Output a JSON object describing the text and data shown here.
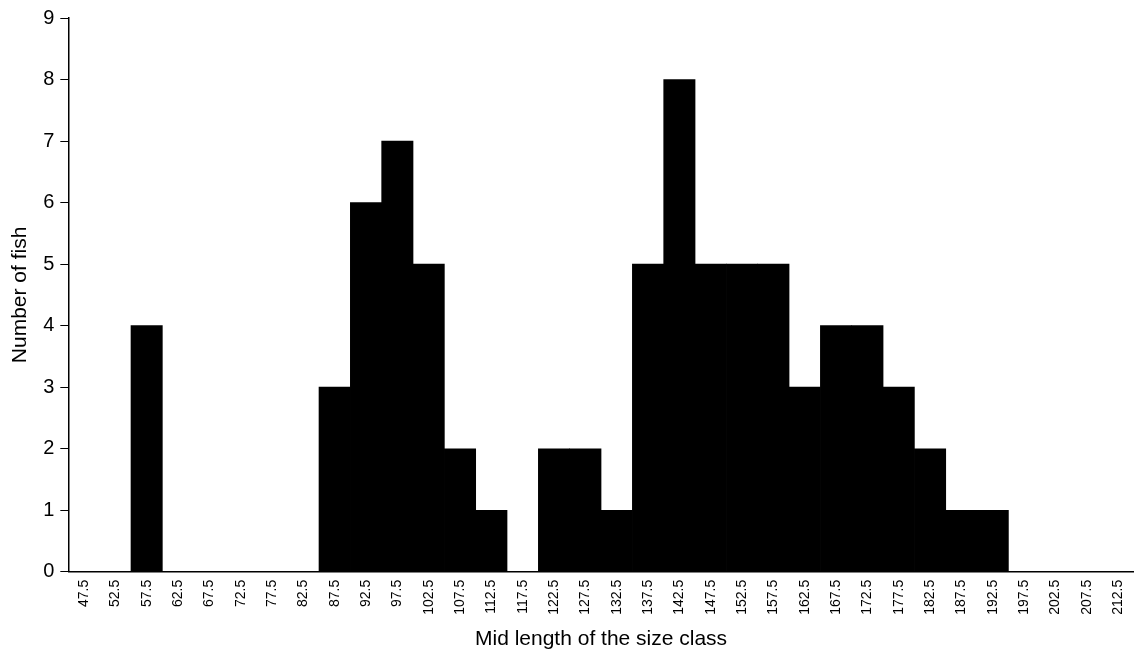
{
  "chart_data": {
    "type": "bar",
    "xlabel": "Mid length of the size class",
    "ylabel": "Number of fish",
    "categories": [
      "47.5",
      "52.5",
      "57.5",
      "62.5",
      "67.5",
      "72.5",
      "77.5",
      "82.5",
      "87.5",
      "92.5",
      "97.5",
      "102.5",
      "107.5",
      "112.5",
      "117.5",
      "122.5",
      "127.5",
      "132.5",
      "137.5",
      "142.5",
      "147.5",
      "152.5",
      "157.5",
      "162.5",
      "167.5",
      "172.5",
      "177.5",
      "182.5",
      "187.5",
      "192.5",
      "197.5",
      "202.5",
      "207.5",
      "212.5"
    ],
    "values": [
      0,
      0,
      4,
      0,
      0,
      0,
      0,
      0,
      3,
      6,
      7,
      5,
      2,
      1,
      0,
      2,
      2,
      1,
      5,
      8,
      5,
      5,
      5,
      3,
      4,
      4,
      3,
      2,
      1,
      1,
      0,
      0,
      0,
      0
    ],
    "color": "#000000",
    "ylim": [
      0,
      9
    ],
    "yticks": [
      0,
      1,
      2,
      3,
      4,
      5,
      6,
      7,
      8,
      9
    ],
    "grid": false,
    "legend": false
  }
}
